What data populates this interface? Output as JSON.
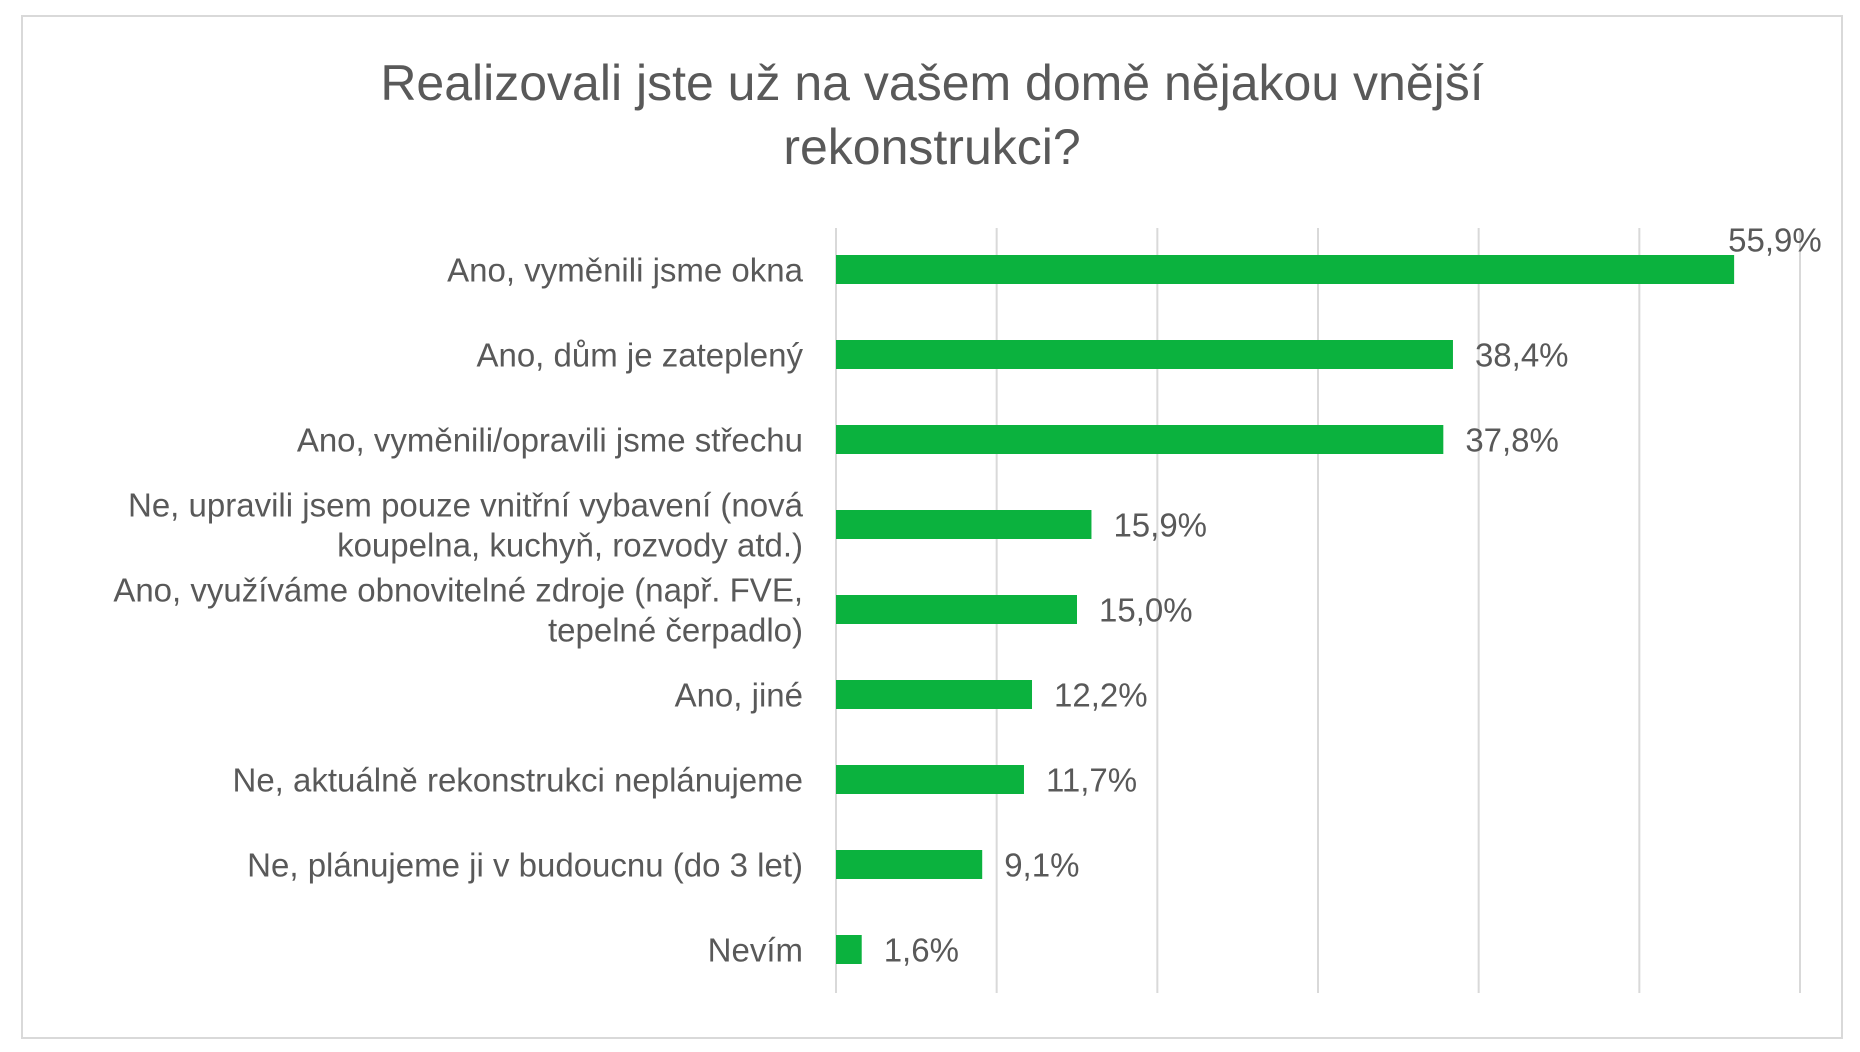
{
  "chart_data": {
    "type": "bar",
    "orientation": "horizontal",
    "title": "Realizovali jste už na vašem domě nějakou vnější rekonstrukci?",
    "title_lines": [
      "Realizovali jste už na vašem domě nějakou vnější",
      "rekonstrukci?"
    ],
    "categories": [
      "Ano, vyměnili jsme okna",
      "Ano, dům je zateplený",
      "Ano, vyměnili/opravili jsme střechu",
      "Ne, upravili jsem pouze vnitřní vybavení (nová koupelna, kuchyň, rozvody atd.)",
      "Ano, využíváme obnovitelné zdroje (např. FVE, tepelné čerpadlo)",
      "Ano, jiné",
      "Ne, aktuálně rekonstrukci neplánujeme",
      "Ne, plánujeme ji v budoucnu (do 3 let)",
      "Nevím"
    ],
    "category_lines": [
      [
        "Ano, vyměnili jsme okna"
      ],
      [
        "Ano, dům je zateplený"
      ],
      [
        "Ano, vyměnili/opravili jsme střechu"
      ],
      [
        "Ne, upravili jsem pouze vnitřní vybavení (nová",
        "koupelna, kuchyň, rozvody atd.)"
      ],
      [
        "Ano, využíváme obnovitelné zdroje (např. FVE,",
        "tepelné čerpadlo)"
      ],
      [
        "Ano, jiné"
      ],
      [
        "Ne, aktuálně rekonstrukci neplánujeme"
      ],
      [
        "Ne, plánujeme ji v budoucnu (do 3 let)"
      ],
      [
        "Nevím"
      ]
    ],
    "values": [
      55.9,
      38.4,
      37.8,
      15.9,
      15.0,
      12.2,
      11.7,
      9.1,
      1.6
    ],
    "labels": [
      "55,9%",
      "38,4%",
      "37,8%",
      "15,9%",
      "15,0%",
      "12,2%",
      "11,7%",
      "9,1%",
      "1,6%"
    ],
    "xlim": [
      0,
      60
    ],
    "xticks": [
      0,
      10,
      20,
      30,
      40,
      50,
      60
    ],
    "grid": "vertical",
    "legend": "none",
    "xlabel": "",
    "ylabel": "",
    "bar_color": "#0bb23e",
    "grid_color": "#d9d9d9",
    "text_color": "#595959",
    "border_color": "#d9d9d9"
  }
}
